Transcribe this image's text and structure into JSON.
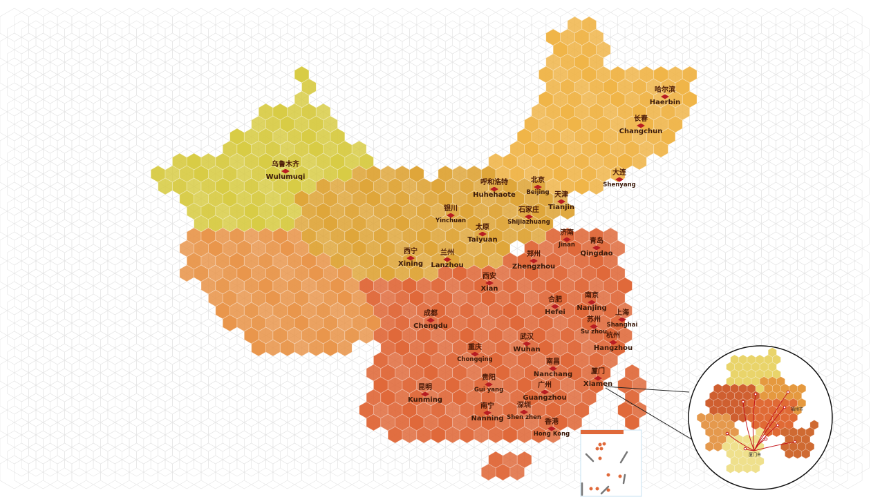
{
  "colors": {
    "xinjiang": "#d8cc45",
    "west": "#e9964c",
    "north": "#dfa63a",
    "northeast": "#f0b548",
    "south": "#e0693a",
    "pin": "#b81d22",
    "grid": "#e4e4e4"
  },
  "cities": [
    {
      "zh": "乌鲁木齐",
      "en": "Wulumuqi"
    },
    {
      "zh": "哈尔滨",
      "en": "Haerbin"
    },
    {
      "zh": "长春",
      "en": "Changchun"
    },
    {
      "zh": "大连",
      "en": "Shenyang"
    },
    {
      "zh": "呼和浩特",
      "en": "Huhehaote"
    },
    {
      "zh": "北京",
      "en": "Beijing"
    },
    {
      "zh": "天津",
      "en": "Tianjin"
    },
    {
      "zh": "银川",
      "en": "Yinchuan"
    },
    {
      "zh": "石家庄",
      "en": "Shijiazhuang"
    },
    {
      "zh": "太原",
      "en": "Taiyuan"
    },
    {
      "zh": "济南",
      "en": "Jinan"
    },
    {
      "zh": "青岛",
      "en": "Qingdao"
    },
    {
      "zh": "西宁",
      "en": "Xining"
    },
    {
      "zh": "兰州",
      "en": "Lanzhou"
    },
    {
      "zh": "郑州",
      "en": "Zhengzhou"
    },
    {
      "zh": "西安",
      "en": "Xian"
    },
    {
      "zh": "合肥",
      "en": "Hefei"
    },
    {
      "zh": "南京",
      "en": "Nanjing"
    },
    {
      "zh": "苏州",
      "en": "Su zhou"
    },
    {
      "zh": "上海",
      "en": "Shanghai"
    },
    {
      "zh": "成都",
      "en": "Chengdu"
    },
    {
      "zh": "杭州",
      "en": "Hangzhou"
    },
    {
      "zh": "武汉",
      "en": "Wuhan"
    },
    {
      "zh": "重庆",
      "en": "Chongqing"
    },
    {
      "zh": "南昌",
      "en": "Nanchang"
    },
    {
      "zh": "厦门",
      "en": "Xiamen"
    },
    {
      "zh": "昆明",
      "en": "Kunming"
    },
    {
      "zh": "贵阳",
      "en": "Gui yang"
    },
    {
      "zh": "广州",
      "en": "Guangzhou"
    },
    {
      "zh": "深圳",
      "en": "Shen zhen"
    },
    {
      "zh": "南宁",
      "en": "Nanning"
    },
    {
      "zh": "香港",
      "en": "Hong Kong"
    }
  ],
  "inset": {
    "hub": "厦门市",
    "labels": [
      "福州市"
    ]
  },
  "icons": {
    "city_marker": "red-diamond-icon"
  }
}
